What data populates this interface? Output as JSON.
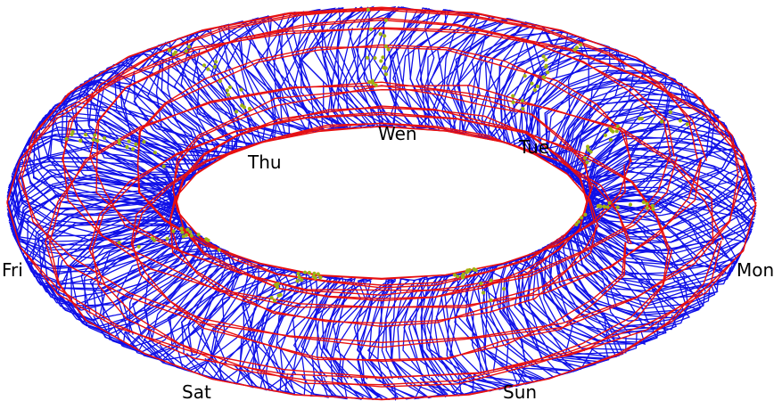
{
  "labels": {
    "mon": "Mon",
    "tue": "Tue",
    "wen": "Wen",
    "thu": "Thu",
    "fri": "Fri",
    "sat": "Sat",
    "sun": "Sun"
  }
}
